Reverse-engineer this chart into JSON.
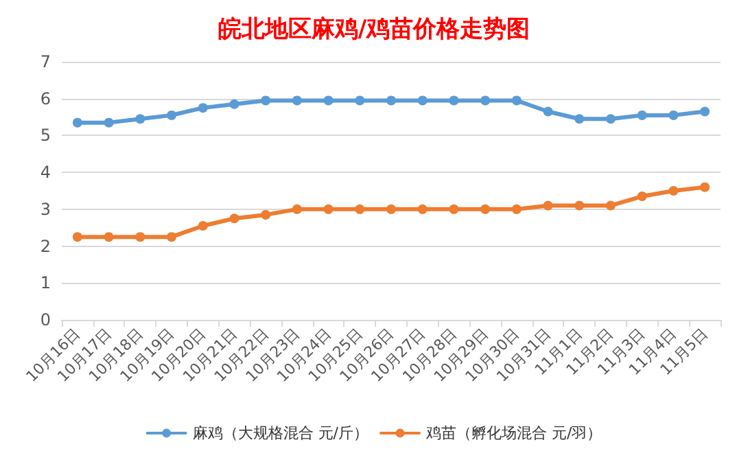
{
  "chart_data": {
    "type": "line",
    "title": "皖北地区麻鸡/鸡苗价格走势图",
    "categories": [
      "10月16日",
      "10月17日",
      "10月18日",
      "10月19日",
      "10月20日",
      "10月21日",
      "10月22日",
      "10月23日",
      "10月24日",
      "10月25日",
      "10月26日",
      "10月27日",
      "10月28日",
      "10月29日",
      "10月30日",
      "10月31日",
      "11月1日",
      "11月2日",
      "11月3日",
      "11月4日",
      "11月5日"
    ],
    "series": [
      {
        "name": "麻鸡（大规格混合 元/斤）",
        "color": "#5b9bd5",
        "values": [
          5.35,
          5.35,
          5.45,
          5.55,
          5.75,
          5.85,
          5.95,
          5.95,
          5.95,
          5.95,
          5.95,
          5.95,
          5.95,
          5.95,
          5.95,
          5.65,
          5.45,
          5.45,
          5.55,
          5.55,
          5.65
        ]
      },
      {
        "name": "鸡苗（孵化场混合 元/羽）",
        "color": "#ed7d31",
        "values": [
          2.25,
          2.25,
          2.25,
          2.25,
          2.55,
          2.75,
          2.85,
          3.0,
          3.0,
          3.0,
          3.0,
          3.0,
          3.0,
          3.0,
          3.0,
          3.1,
          3.1,
          3.1,
          3.35,
          3.5,
          3.6
        ]
      }
    ],
    "ylim": [
      0,
      7
    ],
    "yticks": [
      0,
      1,
      2,
      3,
      4,
      5,
      6,
      7
    ],
    "grid": "y",
    "legend": "bottom",
    "marker": "circle",
    "line_style": "solid"
  }
}
